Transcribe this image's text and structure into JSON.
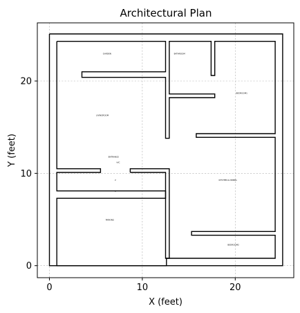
{
  "chart_data": {
    "type": "floor-plan",
    "title": "Architectural Plan",
    "xlabel": "X (feet)",
    "ylabel": "Y (feet)",
    "xlim": [
      -1.3,
      26.3
    ],
    "ylim": [
      -1.3,
      26.3
    ],
    "xticks": [
      0,
      10,
      20
    ],
    "yticks": [
      0,
      10,
      20
    ],
    "grid": true,
    "walls": [
      [
        [
          0,
          25.1
        ],
        [
          25.1,
          25.1
        ],
        [
          25.1,
          0
        ],
        [
          0,
          0
        ],
        [
          0,
          25.1
        ]
      ],
      [
        [
          0.8,
          24.3
        ],
        [
          0.8,
          10.5
        ],
        [
          5.5,
          10.5
        ],
        [
          5.5,
          10.1
        ],
        [
          0.8,
          10.1
        ],
        [
          0.8,
          8.1
        ],
        [
          12.5,
          8.1
        ],
        [
          12.5,
          7.3
        ],
        [
          0.8,
          7.3
        ],
        [
          0.8,
          0
        ],
        [
          12.6,
          0
        ],
        [
          12.6,
          0.8
        ],
        [
          24.3,
          0.8
        ],
        [
          24.3,
          3.3
        ],
        [
          15.3,
          3.3
        ],
        [
          15.3,
          3.7
        ],
        [
          24.3,
          3.7
        ],
        [
          24.3,
          13.9
        ],
        [
          15.8,
          13.9
        ],
        [
          15.8,
          14.3
        ],
        [
          24.3,
          14.3
        ],
        [
          24.3,
          24.3
        ],
        [
          17.8,
          24.3
        ],
        [
          17.8,
          20.6
        ],
        [
          17.4,
          20.6
        ],
        [
          17.4,
          24.3
        ],
        [
          12.9,
          24.3
        ],
        [
          12.9,
          18.6
        ],
        [
          17.8,
          18.6
        ],
        [
          17.8,
          18.2
        ],
        [
          12.9,
          18.2
        ],
        [
          12.9,
          13.8
        ],
        [
          12.5,
          13.8
        ],
        [
          12.5,
          20.4
        ],
        [
          3.5,
          20.4
        ],
        [
          3.5,
          21
        ],
        [
          12.5,
          21
        ],
        [
          12.5,
          24.3
        ],
        [
          0.8,
          24.3
        ]
      ],
      [
        [
          8.7,
          10.1
        ],
        [
          8.7,
          10.5
        ],
        [
          12.9,
          10.5
        ],
        [
          12.9,
          0.8
        ],
        [
          12.5,
          0.8
        ],
        [
          12.5,
          10.1
        ],
        [
          8.7,
          10.1
        ]
      ]
    ],
    "labels": [
      {
        "text": "GARDEN",
        "x": 6.2,
        "y": 22.9
      },
      {
        "text": "BATHROOM",
        "x": 14.0,
        "y": 22.9
      },
      {
        "text": "BEDROOM1",
        "x": 20.7,
        "y": 18.6
      },
      {
        "text": "LIVINGROOM",
        "x": 5.7,
        "y": 16.2
      },
      {
        "text": "ENTRANCE",
        "x": 6.9,
        "y": 11.7
      },
      {
        "text": "H/C",
        "x": 7.4,
        "y": 11.1
      },
      {
        "text": "KITCHEN & DINING",
        "x": 19.2,
        "y": 9.2
      },
      {
        "text": "2",
        "x": 7.1,
        "y": 9.2
      },
      {
        "text": "1",
        "x": 7.1,
        "y": 8.0
      },
      {
        "text": "PARKING",
        "x": 6.5,
        "y": 4.9
      },
      {
        "text": "BEDROOM2",
        "x": 19.8,
        "y": 2.2
      }
    ]
  }
}
